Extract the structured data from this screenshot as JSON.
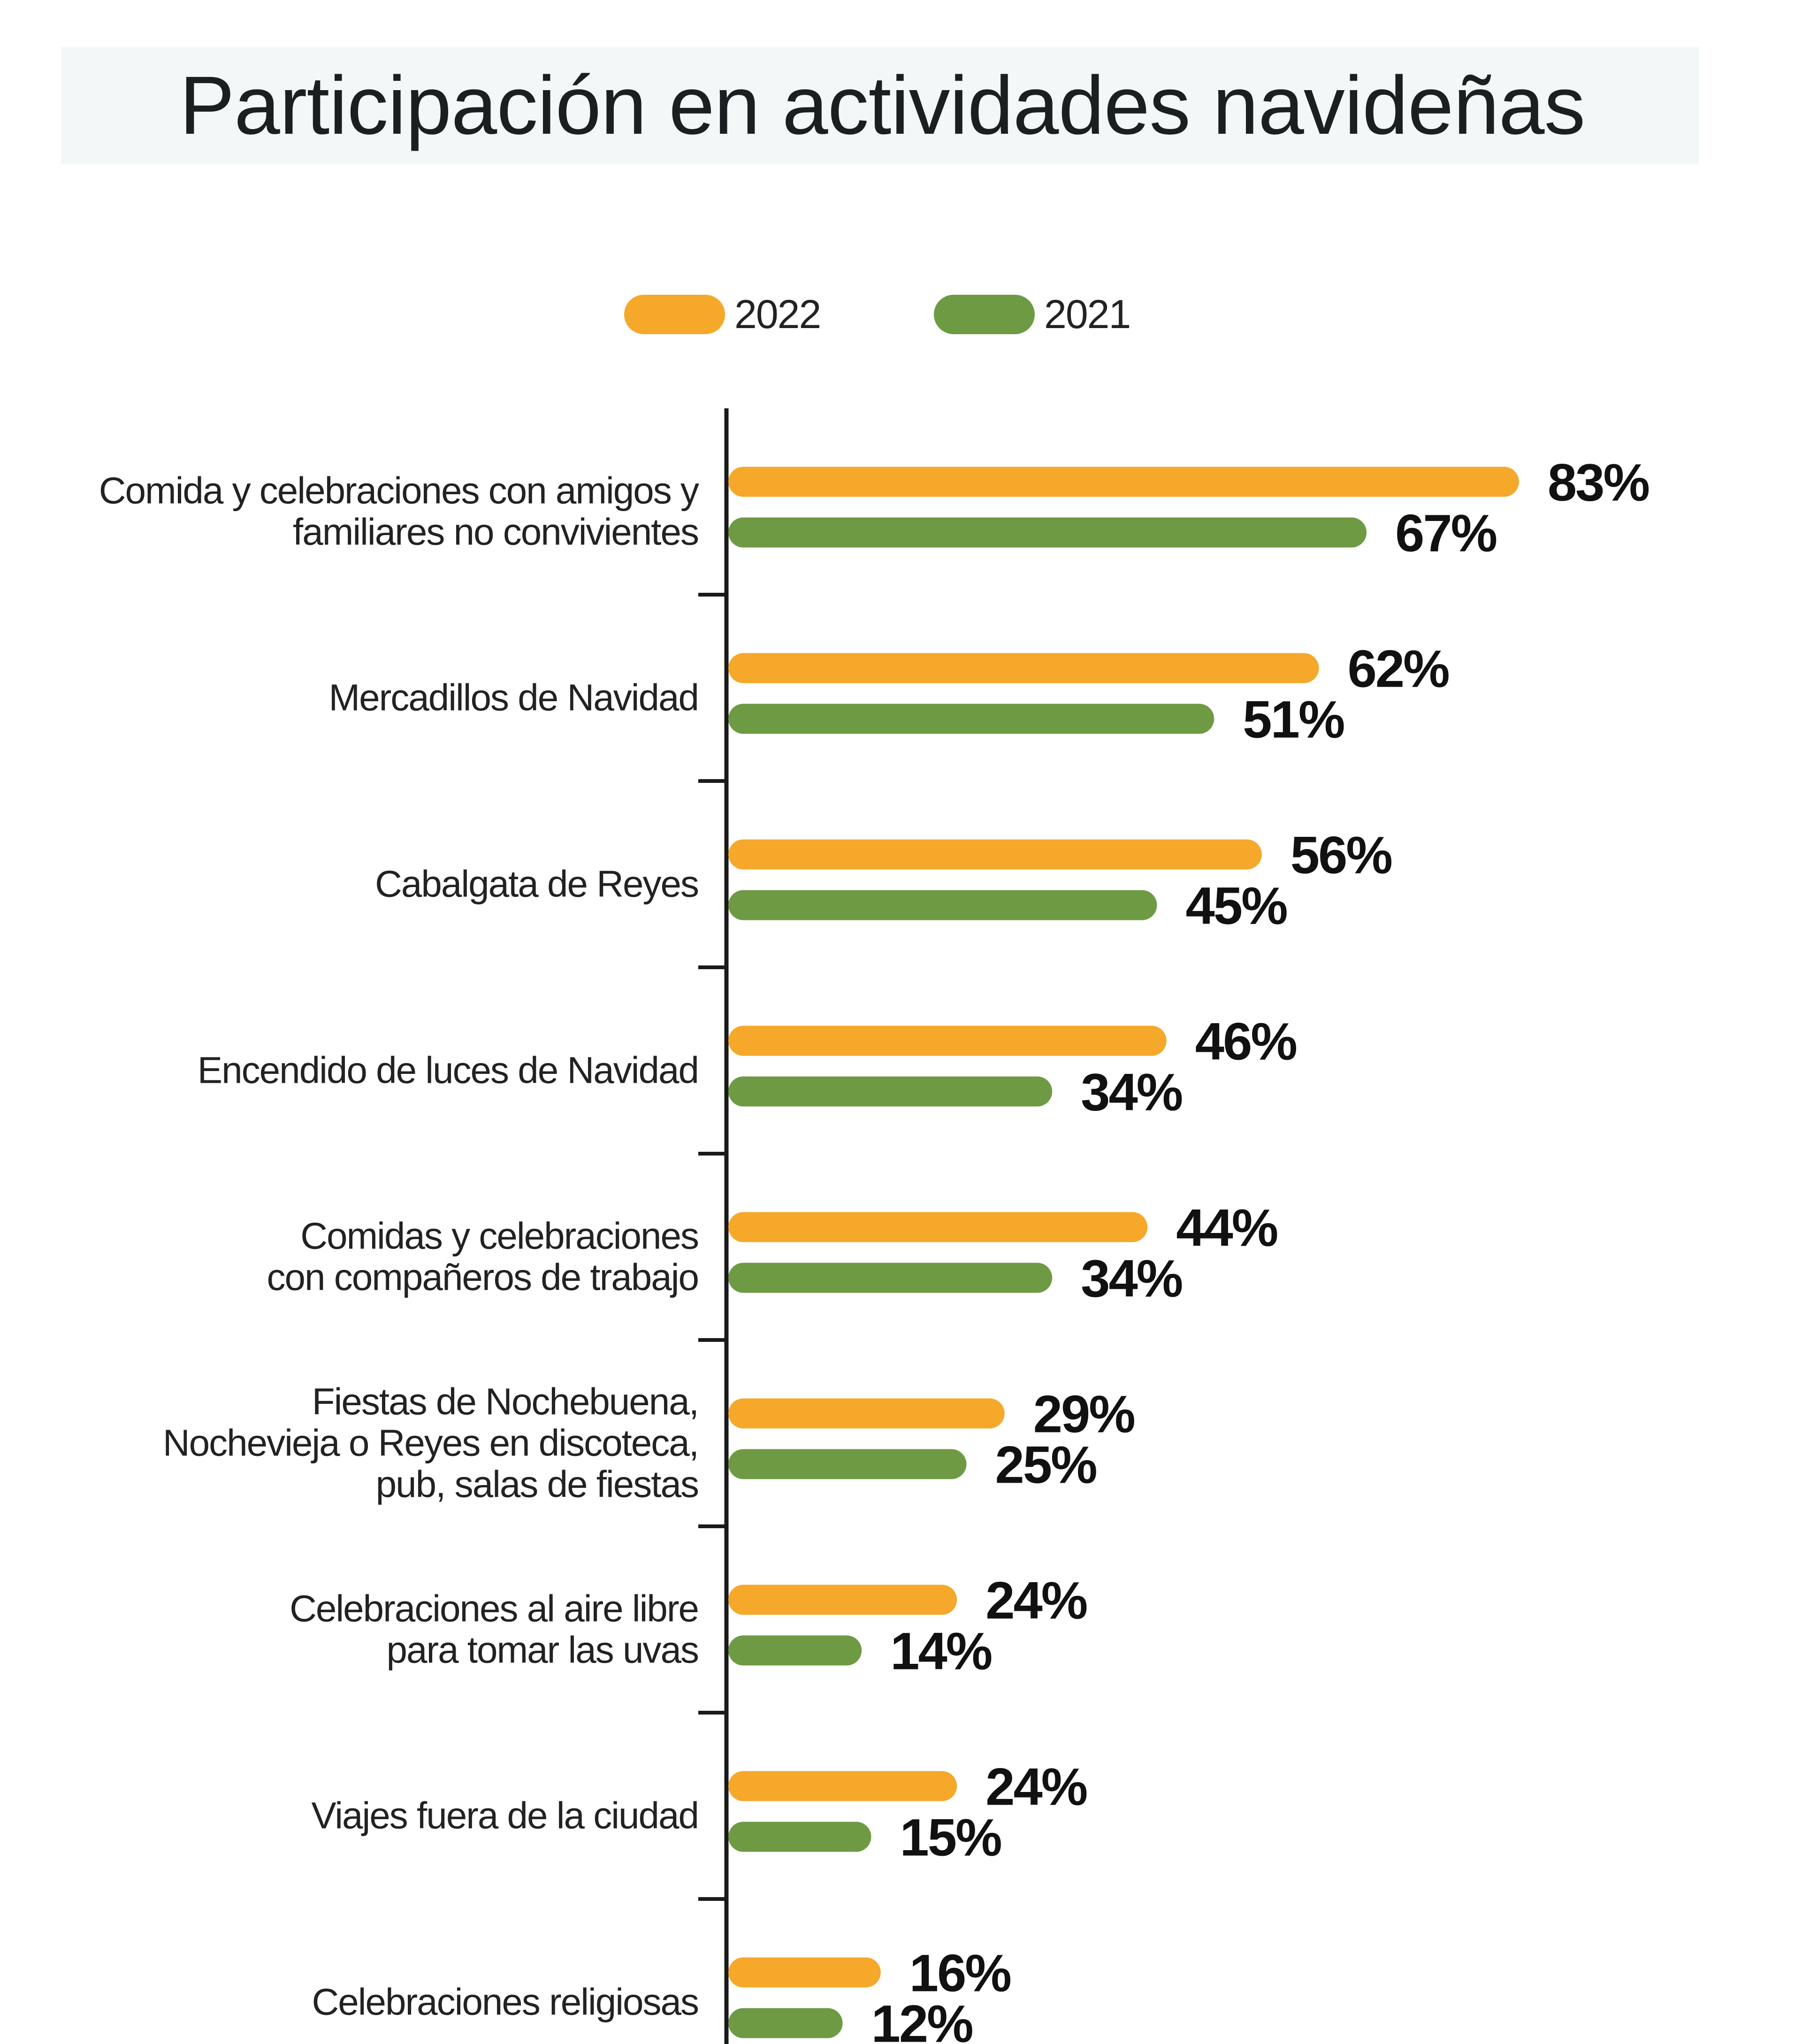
{
  "title": "Participación en actividades navideñas",
  "colors": {
    "2022": "#f5a82a",
    "2021": "#6e9a44",
    "axis": "#1a1a1a"
  },
  "legend": [
    {
      "name": "2022",
      "color": "#f5a82a"
    },
    {
      "name": "2021",
      "color": "#6e9a44"
    }
  ],
  "chart_data": {
    "type": "bar",
    "orientation": "horizontal",
    "title": "Participación en actividades navideñas",
    "xlabel": "",
    "ylabel": "",
    "xlim": [
      0,
      100
    ],
    "grid": false,
    "legend_position": "top",
    "value_suffix": "%",
    "categories": [
      [
        "Comida y celebraciones con amigos y",
        "familiares no convivientes"
      ],
      [
        "Mercadillos de Navidad"
      ],
      [
        "Cabalgata de Reyes"
      ],
      [
        "Encendido de luces de Navidad"
      ],
      [
        "Comidas y celebraciones",
        "con compañeros de trabajo"
      ],
      [
        "Fiestas de Nochebuena,",
        "Nochevieja o Reyes en discoteca,",
        "pub, salas de fiestas"
      ],
      [
        "Celebraciones al aire libre",
        "para tomar las uvas"
      ],
      [
        "Viajes fuera de la ciudad"
      ],
      [
        "Celebraciones religiosas"
      ]
    ],
    "series": [
      {
        "name": "2022",
        "color": "#f5a82a",
        "values": [
          83,
          62,
          56,
          46,
          44,
          29,
          24,
          24,
          16
        ]
      },
      {
        "name": "2021",
        "color": "#6e9a44",
        "values": [
          67,
          51,
          45,
          34,
          34,
          25,
          14,
          15,
          12
        ]
      }
    ]
  }
}
